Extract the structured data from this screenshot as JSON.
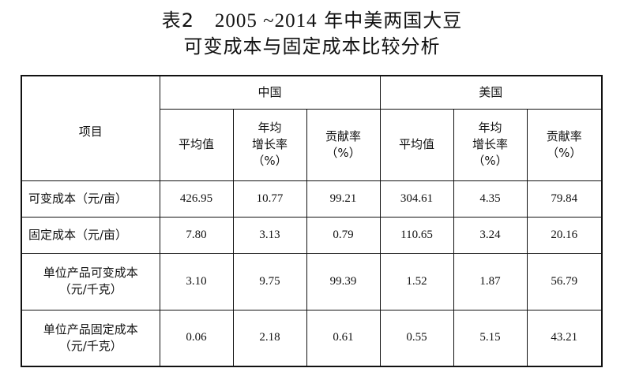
{
  "title": {
    "line1_prefix": "表2",
    "line1_years": "2005 ~2014",
    "line1_suffix": "年中美两国大豆",
    "line2": "可变成本与固定成本比较分析"
  },
  "table": {
    "item_header": "项目",
    "country_headers": [
      "中国",
      "美国"
    ],
    "metric_headers": [
      "平均值",
      "年均\n增长率\n（%）",
      "贡献率\n（%）"
    ],
    "rows": [
      {
        "label": "可变成本（元/亩）",
        "values": [
          "426.95",
          "10.77",
          "99.21",
          "304.61",
          "4.35",
          "79.84"
        ]
      },
      {
        "label": "固定成本（元/亩）",
        "values": [
          "7.80",
          "3.13",
          "0.79",
          "110.65",
          "3.24",
          "20.16"
        ]
      },
      {
        "label": "单位产品可变成本\n（元/千克）",
        "values": [
          "3.10",
          "9.75",
          "99.39",
          "1.52",
          "1.87",
          "56.79"
        ]
      },
      {
        "label": "单位产品固定成本\n（元/千克）",
        "values": [
          "0.06",
          "2.18",
          "0.61",
          "0.55",
          "5.15",
          "43.21"
        ]
      }
    ]
  }
}
